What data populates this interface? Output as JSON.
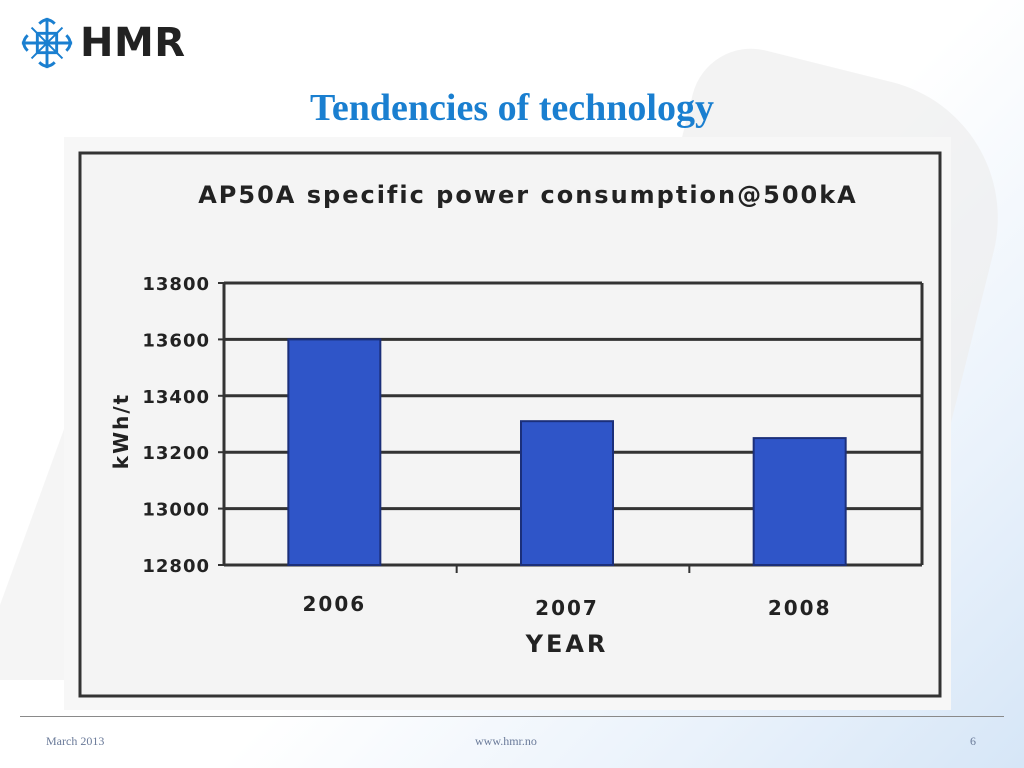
{
  "logo": {
    "text": "HMR",
    "icon": "hmr-logo-icon",
    "color": "#1a7fd0"
  },
  "slide": {
    "title": "Tendencies of technology"
  },
  "footer": {
    "date": "March 2013",
    "url": "www.hmr.no",
    "page": "6"
  },
  "chart_data": {
    "type": "bar",
    "title": "AP50A specific power consumption@500kA",
    "xlabel": "YEAR",
    "ylabel": "kWh/t",
    "categories": [
      "2006",
      "2007",
      "2008"
    ],
    "values": [
      13600,
      13310,
      13250
    ],
    "ylim": [
      12800,
      13800
    ],
    "yticks": [
      13800,
      13600,
      13400,
      13200,
      13000,
      12800
    ],
    "grid": true,
    "bar_color": "#2f55c8"
  }
}
